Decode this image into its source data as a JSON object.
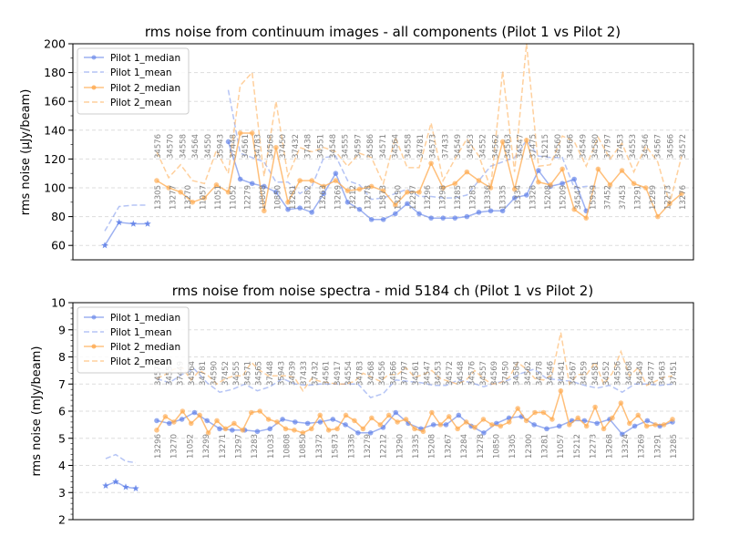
{
  "colors": {
    "pilot1": "#5b7de8",
    "pilot2": "#ffa94d",
    "grid": "#dddddd"
  },
  "chart_data": [
    {
      "type": "line",
      "title": "rms noise from continuum images - all components (Pilot 1 vs Pilot 2)",
      "ylabel": "rms noise (μJy/beam)",
      "ylim": [
        50,
        200
      ],
      "yticks": [
        60,
        80,
        100,
        120,
        140,
        160,
        180,
        200
      ],
      "grid": true,
      "legend": "top-left",
      "series": [
        {
          "name": "Pilot 1_median",
          "color": "#5b7de8",
          "style": "solid-marker",
          "x": [
            0,
            1,
            2,
            3,
            4,
            5,
            6,
            7,
            8,
            9,
            10,
            11,
            12,
            13,
            14,
            15,
            16,
            17,
            18,
            19,
            20,
            21,
            22,
            23,
            24,
            25,
            26,
            27,
            28,
            29,
            30,
            31,
            32,
            33,
            34,
            35,
            36,
            37,
            38,
            39,
            40,
            41,
            42,
            43,
            44
          ],
          "values": [
            null,
            null,
            null,
            null,
            null,
            null,
            132,
            106,
            103,
            101,
            97,
            85,
            86,
            83,
            96,
            110,
            90,
            85,
            78,
            78,
            82,
            89,
            82,
            79,
            79,
            79,
            80,
            83,
            84,
            84,
            93,
            95,
            112,
            101,
            103,
            106,
            84,
            null,
            null,
            null,
            null,
            null,
            null,
            null,
            null
          ]
        },
        {
          "name": "Pilot 1_mean",
          "color": "#5b7de8",
          "style": "dashed",
          "x": [
            0,
            1,
            2,
            3,
            4,
            5,
            6,
            7,
            8,
            9,
            10,
            11,
            12,
            13,
            14,
            15,
            16,
            17,
            18,
            19,
            20,
            21,
            22,
            23,
            24,
            25,
            26,
            27,
            28,
            29,
            30,
            31,
            32,
            33,
            34,
            35,
            36,
            37,
            38,
            39,
            40,
            41,
            42,
            43,
            44
          ],
          "values": [
            null,
            null,
            null,
            null,
            null,
            null,
            168,
            124,
            121,
            118,
            104,
            104,
            96,
            101,
            121,
            122,
            105,
            102,
            92,
            93,
            96,
            99,
            94,
            94,
            93,
            93,
            95,
            105,
            115,
            118,
            121,
            133,
            122,
            121,
            121,
            100,
            101,
            101,
            null,
            null,
            null,
            null,
            null,
            null,
            null
          ]
        },
        {
          "name": "Pilot 2_median",
          "color": "#ffa94d",
          "style": "solid-marker",
          "x": [
            0,
            1,
            2,
            3,
            4,
            5,
            6,
            7,
            8,
            9,
            10,
            11,
            12,
            13,
            14,
            15,
            16,
            17,
            18,
            19,
            20,
            21,
            22,
            23,
            24,
            25,
            26,
            27,
            28,
            29,
            30,
            31,
            32,
            33,
            34,
            35,
            36,
            37,
            38,
            39,
            40,
            41,
            42,
            43,
            44
          ],
          "values": [
            105,
            100,
            97,
            90,
            93,
            102,
            97,
            138,
            138,
            84,
            128,
            90,
            105,
            105,
            101,
            105,
            98,
            99,
            101,
            98,
            88,
            97,
            97,
            117,
            100,
            103,
            111,
            105,
            100,
            132,
            99,
            133,
            104,
            102,
            113,
            85,
            79,
            113,
            102,
            112,
            103,
            100,
            80,
            89,
            96
          ]
        },
        {
          "name": "Pilot 2_mean",
          "color": "#ffa94d",
          "style": "dashed",
          "x": [
            0,
            1,
            2,
            3,
            4,
            5,
            6,
            7,
            8,
            9,
            10,
            11,
            12,
            13,
            14,
            15,
            16,
            17,
            18,
            19,
            20,
            21,
            22,
            23,
            24,
            25,
            26,
            27,
            28,
            29,
            30,
            31,
            32,
            33,
            34,
            35,
            36,
            37,
            38,
            39,
            40,
            41,
            42,
            43,
            44
          ],
          "values": [
            125,
            107,
            116,
            105,
            103,
            126,
            110,
            171,
            180,
            108,
            160,
            108,
            128,
            125,
            128,
            125,
            115,
            124,
            121,
            103,
            135,
            114,
            114,
            145,
            105,
            120,
            134,
            122,
            100,
            181,
            111,
            200,
            115,
            116,
            136,
            132,
            115,
            135,
            120,
            131,
            111,
            129,
            118,
            89,
            122
          ]
        }
      ],
      "point_labels_top": [
        "34576",
        "34570",
        "34558",
        "34564",
        "34550",
        "35943",
        "37448",
        "34561",
        "34783",
        "34568",
        "37450",
        "37432",
        "37438",
        "34551",
        "34548",
        "34555",
        "34597",
        "34586",
        "34571",
        "34564",
        "34558",
        "34781",
        "34573",
        "37433",
        "34549",
        "34553",
        "34552",
        "34562",
        "34563",
        "34547",
        "37475",
        "15215",
        "34560",
        "34566",
        "34549",
        "34580",
        "37797",
        "37453",
        "34553",
        "34546",
        "34567",
        "34566",
        "34572"
      ],
      "point_labels_bottom": [
        "13305",
        "13277",
        "13270",
        "11057",
        "11051",
        "11052",
        "12279",
        "10808",
        "10850",
        "13281",
        "13282",
        "13263",
        "13269",
        "13212",
        "13278",
        "15873",
        "13290",
        "12297",
        "13296",
        "13298",
        "13285",
        "13283",
        "13336",
        "13335",
        "13334",
        "13326",
        "15208",
        "15209",
        "34547",
        "15939",
        "37452",
        "37453",
        "13291",
        "13299",
        "12273",
        "13276"
      ],
      "pilot1_extra": {
        "x": [
          0,
          1,
          2,
          3
        ],
        "median": [
          60,
          76,
          75,
          75
        ],
        "mean": [
          70,
          87,
          88,
          88
        ]
      }
    },
    {
      "type": "line",
      "title": "rms noise from noise spectra - mid 5184 ch (Pilot 1 vs Pilot 2)",
      "ylabel": "rms noise (mJy/beam)",
      "ylim": [
        2,
        10
      ],
      "yticks": [
        2,
        3,
        4,
        5,
        6,
        7,
        8,
        9,
        10
      ],
      "grid": true,
      "legend": "top-left",
      "series": [
        {
          "name": "Pilot 1_median",
          "color": "#5b7de8",
          "style": "solid-marker",
          "values": [
            5.65,
            5.55,
            5.7,
            5.95,
            5.65,
            5.35,
            5.3,
            5.3,
            5.25,
            5.35,
            5.7,
            5.6,
            5.55,
            5.6,
            5.7,
            5.5,
            5.2,
            5.2,
            5.4,
            5.95,
            5.55,
            5.35,
            5.5,
            5.5,
            5.85,
            5.45,
            5.2,
            5.55,
            5.75,
            5.8,
            5.5,
            5.35,
            5.45,
            5.65,
            5.65,
            5.55,
            5.7,
            5.15,
            5.45,
            5.65,
            5.45,
            5.6
          ]
        },
        {
          "name": "Pilot 1_mean",
          "color": "#5b7de8",
          "style": "dashed",
          "values": [
            7.2,
            7.05,
            7.35,
            7.55,
            7.05,
            6.7,
            6.8,
            7.0,
            6.75,
            6.9,
            7.2,
            7.0,
            6.95,
            7.0,
            7.0,
            7.0,
            7.0,
            6.5,
            6.65,
            7.15,
            7.1,
            7.05,
            6.95,
            6.95,
            7.15,
            7.05,
            6.9,
            7.05,
            7.15,
            7.4,
            7.55,
            7.2,
            7.15,
            7.1,
            6.95,
            6.85,
            6.95,
            6.7,
            7.0,
            7.0,
            6.95,
            7.0
          ]
        },
        {
          "name": "Pilot 2_median",
          "color": "#ffa94d",
          "style": "solid-marker",
          "values": [
            5.3,
            5.8,
            5.6,
            6.0,
            5.55,
            5.85,
            5.2,
            5.65,
            5.35,
            5.55,
            5.3,
            5.95,
            6.0,
            5.7,
            5.6,
            5.35,
            5.3,
            5.2,
            5.35,
            5.85,
            5.3,
            5.35,
            5.85,
            5.65,
            5.35,
            5.75,
            5.5,
            5.85,
            5.6,
            5.7,
            5.35,
            5.25,
            5.95,
            5.5,
            5.8,
            5.35,
            5.6,
            5.4,
            5.7,
            5.5,
            5.45,
            5.6,
            6.1,
            5.65,
            5.95,
            5.95,
            5.7,
            6.75,
            5.5,
            5.75,
            5.45,
            6.15,
            5.35,
            5.75,
            6.3,
            5.55,
            5.85,
            5.45,
            5.5,
            5.5,
            5.7
          ]
        },
        {
          "name": "Pilot 2_mean",
          "color": "#ffa94d",
          "style": "dashed",
          "values": [
            7.2,
            7.35,
            7.55,
            7.6,
            7.15,
            7.5,
            7.3,
            7.0,
            7.2,
            7.3,
            7.3,
            7.8,
            7.5,
            7.3,
            7.3,
            7.3,
            7.25,
            6.75,
            7.2,
            7.1,
            7.05,
            7.0,
            7.0,
            7.1,
            7.4,
            7.25,
            7.1,
            7.35,
            7.35,
            7.6,
            7.25,
            7.35,
            7.5,
            7.2,
            7.1,
            7.0,
            7.15,
            7.5,
            7.2,
            7.0,
            7.05,
            7.25,
            7.8,
            7.55,
            7.2,
            7.15,
            7.35,
            8.9,
            7.0,
            7.35,
            7.35,
            7.8,
            7.0,
            7.4,
            8.2,
            7.3,
            7.6,
            6.95,
            7.1,
            7.25,
            7.3
          ]
        }
      ],
      "point_labels_top": [
        "34570",
        "34551",
        "37449",
        "34564",
        "34781",
        "34590",
        "37452",
        "34555",
        "34571",
        "34565",
        "37448",
        "35943",
        "34939",
        "37433",
        "37432",
        "34561",
        "34917",
        "34554",
        "34783",
        "34568",
        "34556",
        "34566",
        "37797",
        "34561",
        "34547",
        "34553",
        "34572",
        "34548",
        "34576",
        "34557",
        "34569",
        "37450",
        "34584",
        "34562",
        "34578",
        "34546",
        "34541",
        "34567",
        "34559",
        "34581",
        "34552",
        "34556",
        "34568",
        "34549",
        "34577",
        "34563",
        "37451"
      ],
      "point_labels_bottom": [
        "13296",
        "13270",
        "11052",
        "13299",
        "13271",
        "13297",
        "13283",
        "11033",
        "10808",
        "10850",
        "13372",
        "15873",
        "13336",
        "13279",
        "12212",
        "13290",
        "13335",
        "15208",
        "13267",
        "13284",
        "13278",
        "10850",
        "13305",
        "12300",
        "13281",
        "11057",
        "15212",
        "12273",
        "13268",
        "13324",
        "13269",
        "13291",
        "13285"
      ],
      "pilot1_extra": {
        "x": [
          0,
          1,
          2,
          3
        ],
        "median": [
          3.25,
          3.4,
          3.2,
          3.15
        ],
        "mean": [
          4.25,
          4.4,
          4.15,
          4.1
        ]
      }
    }
  ]
}
